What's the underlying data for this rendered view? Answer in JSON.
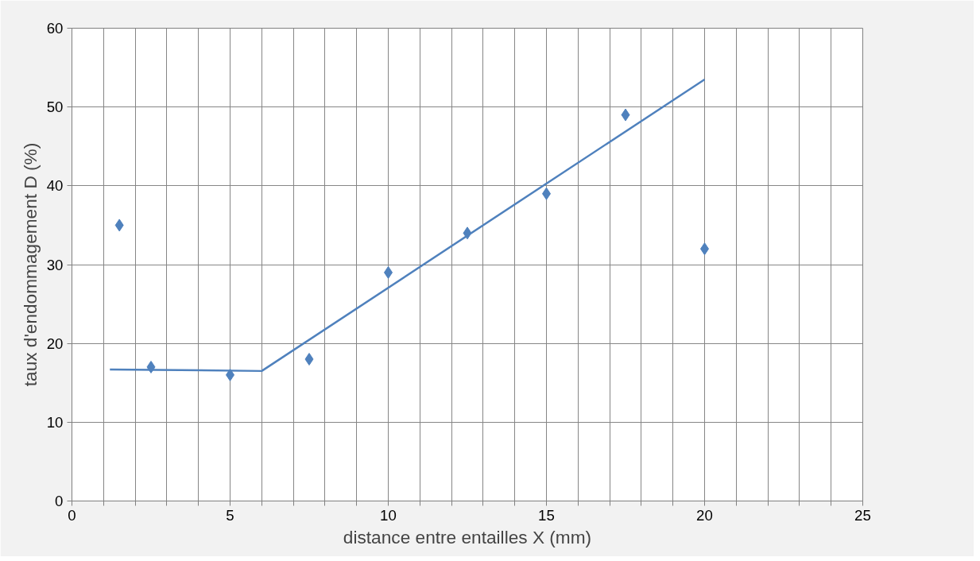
{
  "chart_data": {
    "type": "scatter",
    "xlabel": "distance entre entailles X (mm)",
    "ylabel": "taux d'endommagement D (%)",
    "xlim": [
      0,
      25
    ],
    "ylim": [
      0,
      60
    ],
    "xticks": [
      0,
      {
        "value": 1,
        "label": null
      },
      {
        "value": 2,
        "label": null
      },
      {
        "value": 3,
        "label": null
      },
      {
        "value": 4,
        "label": null
      },
      5,
      {
        "value": 6,
        "label": null
      },
      {
        "value": 7,
        "label": null
      },
      {
        "value": 8,
        "label": null
      },
      {
        "value": 9,
        "label": null
      },
      10,
      {
        "value": 11,
        "label": null
      },
      {
        "value": 12,
        "label": null
      },
      {
        "value": 13,
        "label": null
      },
      {
        "value": 14,
        "label": null
      },
      15,
      {
        "value": 16,
        "label": null
      },
      {
        "value": 17,
        "label": null
      },
      {
        "value": 18,
        "label": null
      },
      {
        "value": 19,
        "label": null
      },
      20,
      {
        "value": 21,
        "label": null
      },
      {
        "value": 22,
        "label": null
      },
      {
        "value": 23,
        "label": null
      },
      {
        "value": 24,
        "label": null
      },
      25
    ],
    "yticks": [
      0,
      10,
      20,
      30,
      40,
      50,
      60
    ],
    "grid": true,
    "series": [
      {
        "marker": "diamond",
        "color": "#4f81bd",
        "x": [
          1.5,
          2.5,
          5,
          7.5,
          10,
          12.5,
          15,
          17.5,
          20
        ],
        "values": [
          35,
          17,
          16,
          18,
          29,
          34,
          39,
          49,
          32
        ]
      },
      {
        "type": "line",
        "marker": "none",
        "color": "#4f81bd",
        "x": [
          1.2,
          6,
          20
        ],
        "values": [
          16.7,
          16.5,
          53.5
        ]
      }
    ]
  }
}
